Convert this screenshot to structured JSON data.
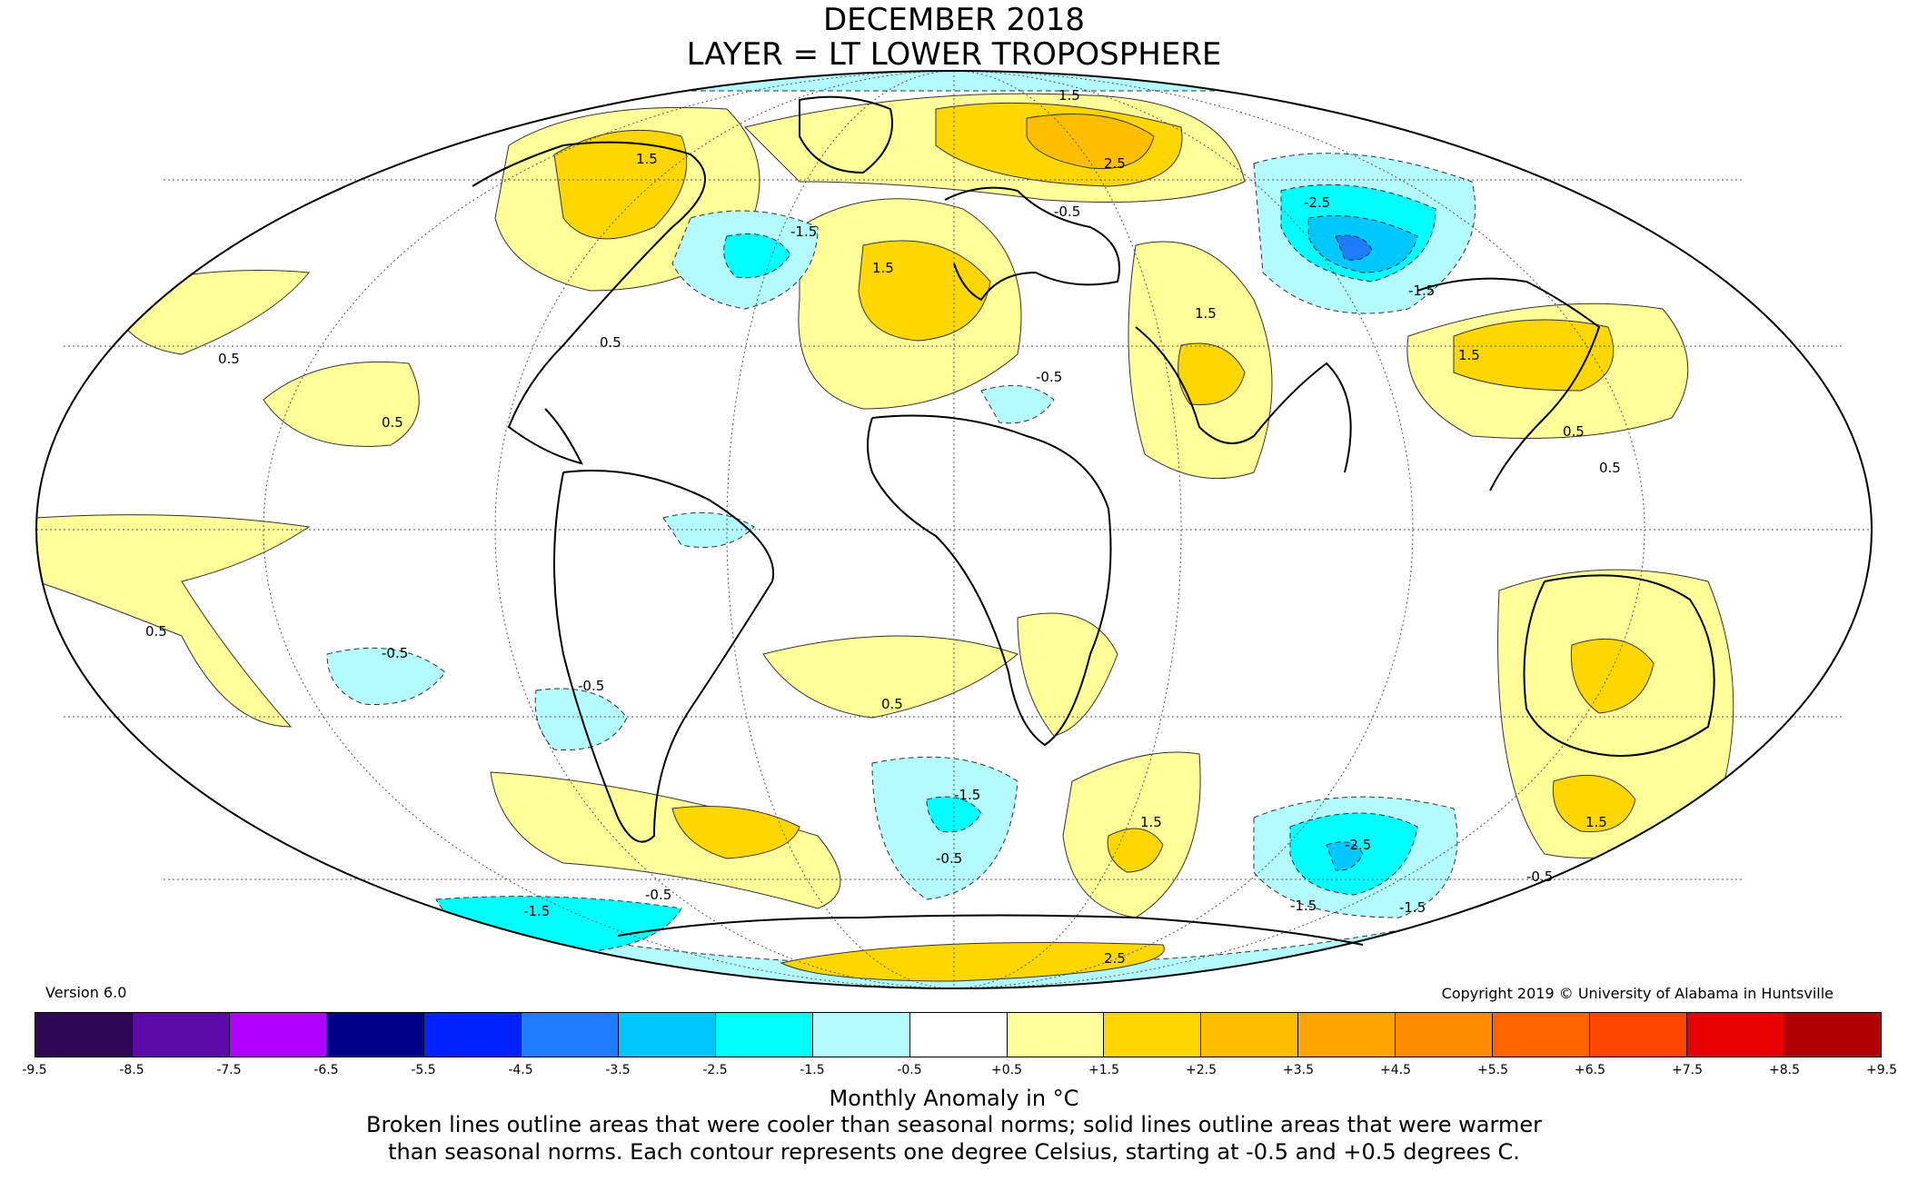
{
  "title_line1": "DECEMBER 2018",
  "title_line2": "LAYER = LT LOWER TROPOSPHERE",
  "version": "Version 6.0",
  "copyright": "Copyright 2019 © University of Alabama in Huntsville",
  "colorbar": {
    "ticks": [
      "-9.5",
      "-8.5",
      "-7.5",
      "-6.5",
      "-5.5",
      "-4.5",
      "-3.5",
      "-2.5",
      "-1.5",
      "-0.5",
      "+0.5",
      "+1.5",
      "+2.5",
      "+3.5",
      "+4.5",
      "+5.5",
      "+6.5",
      "+7.5",
      "+8.5",
      "+9.5"
    ],
    "colors": [
      "#2e0854",
      "#5c0aa8",
      "#b000ff",
      "#00008b",
      "#0022ff",
      "#1e7dff",
      "#00c8ff",
      "#00ffff",
      "#b3fbff",
      "#ffffff",
      "#ffff99",
      "#ffd700",
      "#ffbf00",
      "#ffa500",
      "#ff8c00",
      "#ff6400",
      "#ff4500",
      "#e80000",
      "#b00000"
    ]
  },
  "units_label": "Monthly Anomaly in °C",
  "note_line1": "Broken lines outline areas that were cooler than seasonal norms; solid lines outline areas that were warmer",
  "note_line2": "than seasonal norms. Each contour represents one degree Celsius, starting at -0.5 and +0.5 degrees C.",
  "contour_labels": [
    "0.5",
    "-0.5",
    "1.5",
    "-1.5",
    "2.5",
    "-2.5"
  ]
}
